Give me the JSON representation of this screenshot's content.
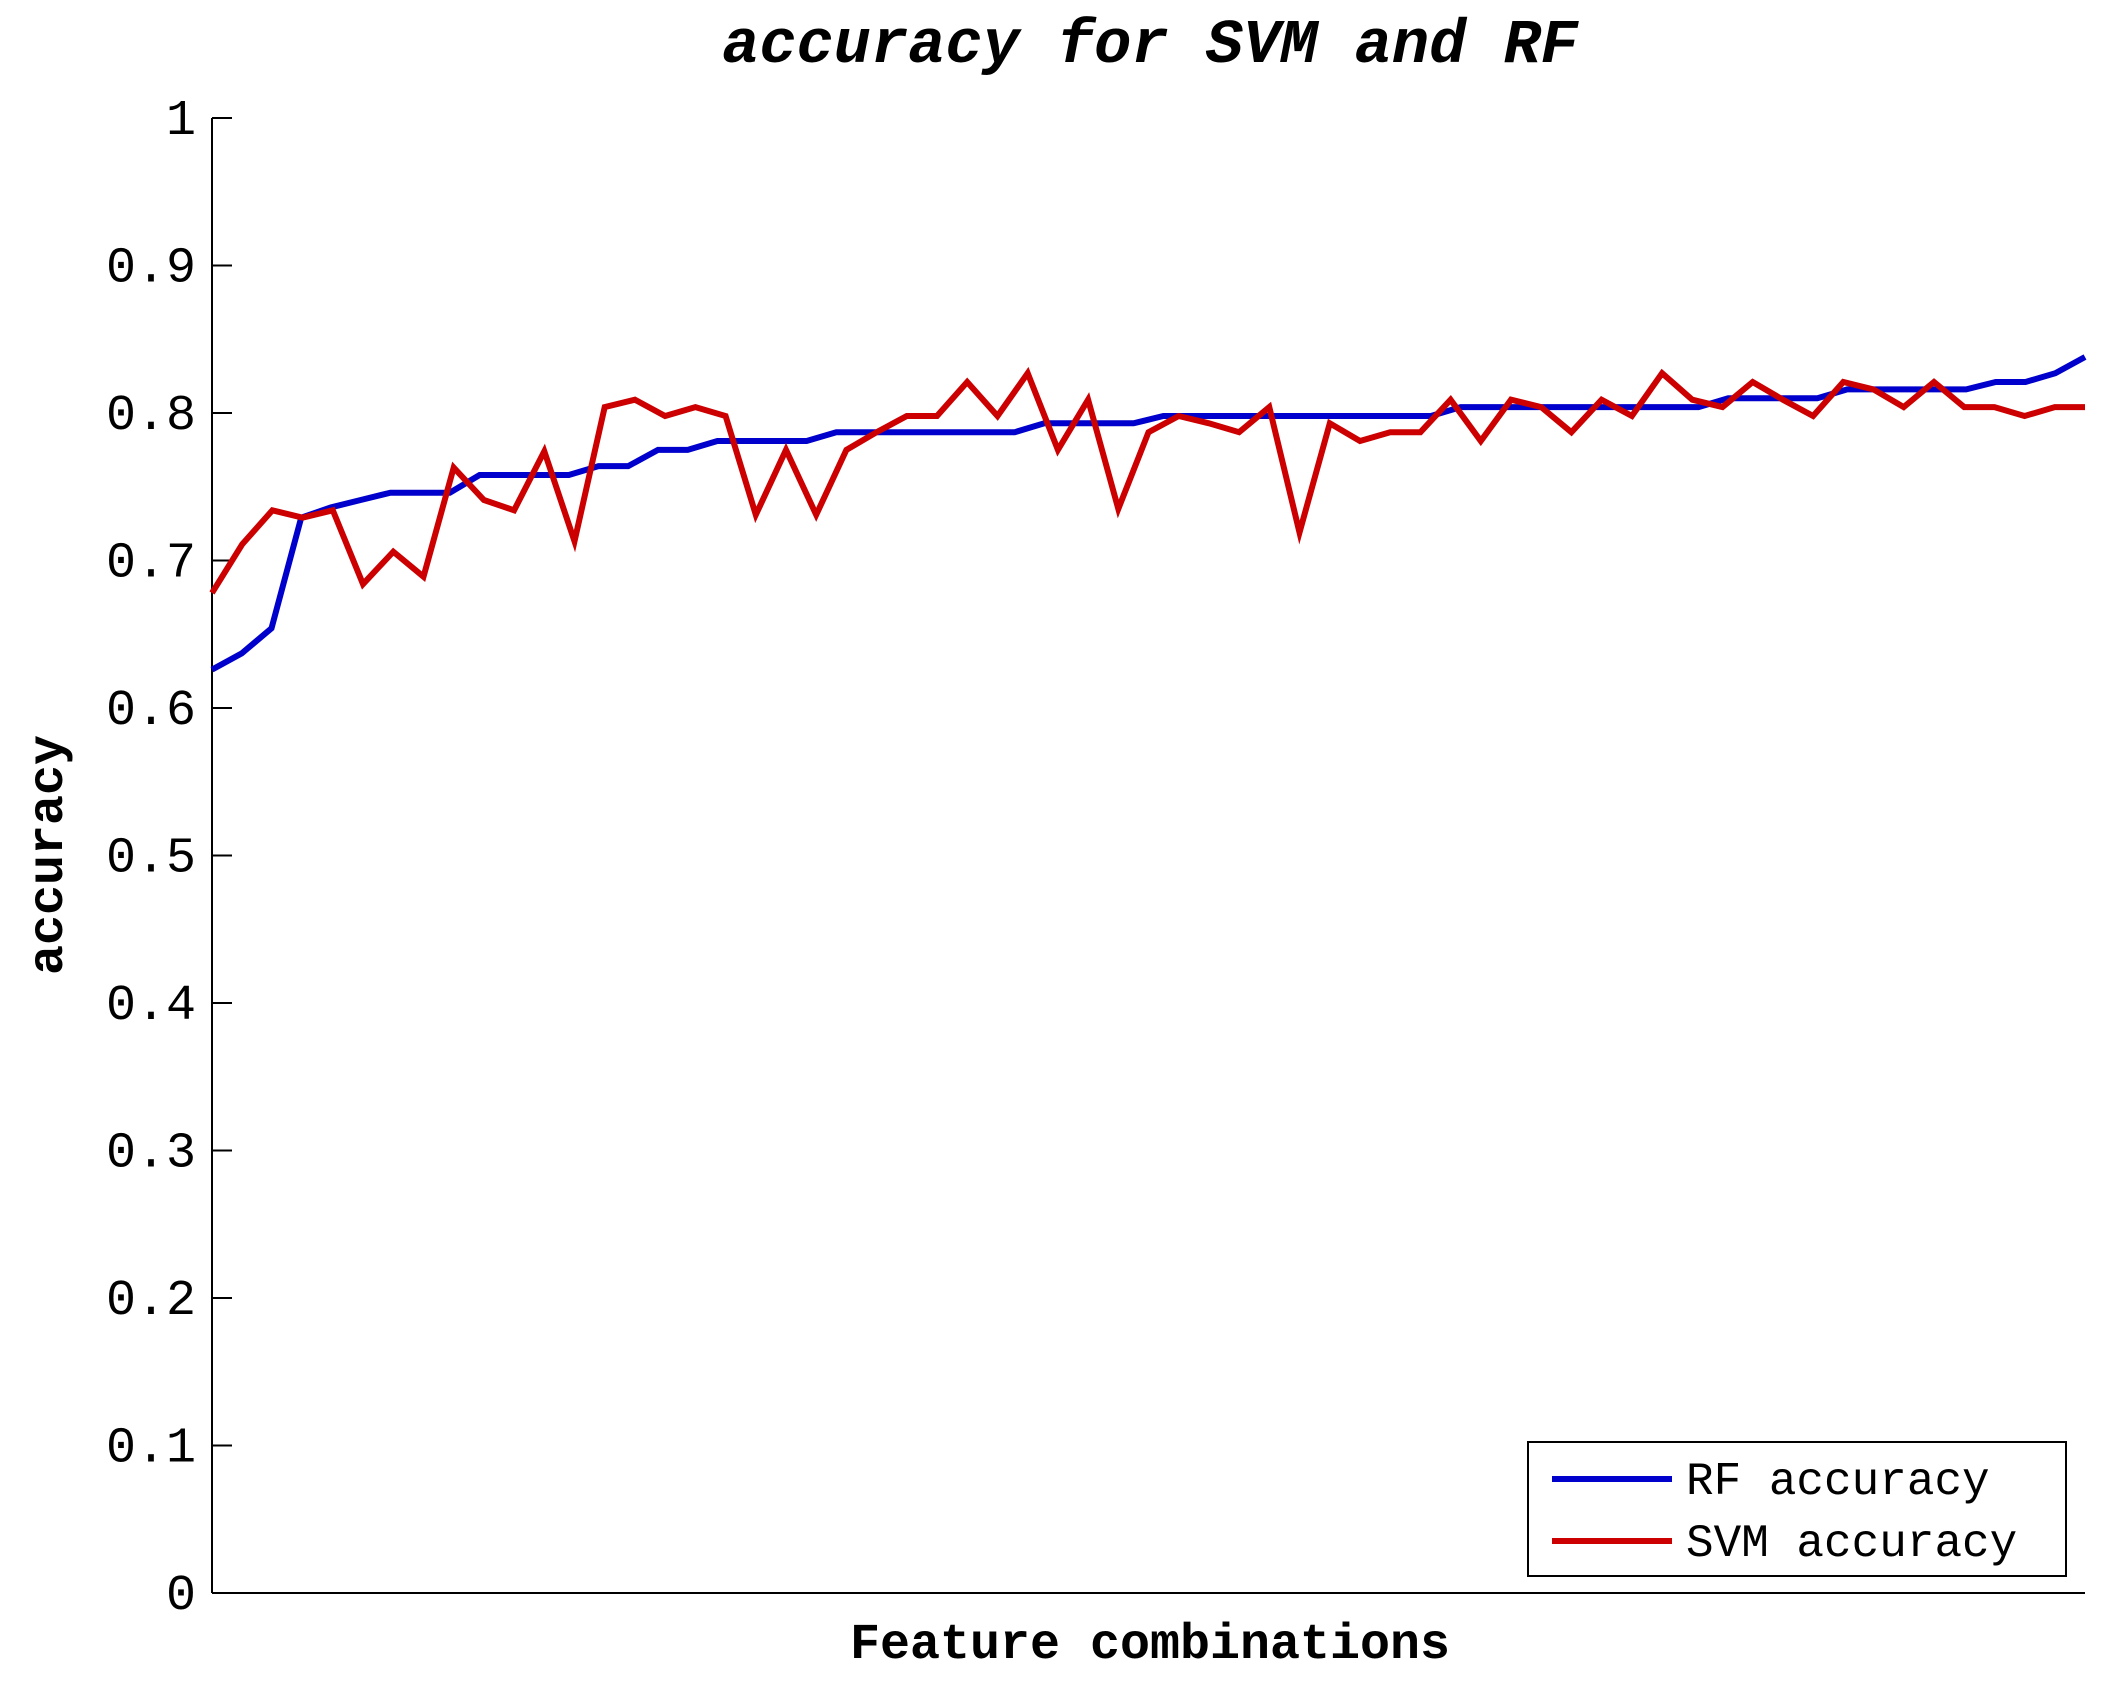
{
  "chart_data": {
    "type": "line",
    "title": "accuracy for SVM and RF",
    "xlabel": "Feature combinations",
    "ylabel": "accuracy",
    "ylim": [
      0,
      1
    ],
    "yticks": [
      "0",
      "0.1",
      "0.2",
      "0.3",
      "0.4",
      "0.5",
      "0.6",
      "0.7",
      "0.8",
      "0.9",
      "1"
    ],
    "grid": false,
    "legend_position": "bottom-right",
    "series": [
      {
        "name": "RF accuracy",
        "color": "#0000cc",
        "values": [
          0.626,
          0.637,
          0.654,
          0.729,
          0.736,
          0.741,
          0.746,
          0.746,
          0.746,
          0.758,
          0.758,
          0.758,
          0.758,
          0.764,
          0.764,
          0.775,
          0.775,
          0.781,
          0.781,
          0.781,
          0.781,
          0.787,
          0.787,
          0.787,
          0.787,
          0.787,
          0.787,
          0.787,
          0.793,
          0.793,
          0.793,
          0.793,
          0.798,
          0.798,
          0.798,
          0.798,
          0.798,
          0.798,
          0.798,
          0.798,
          0.798,
          0.798,
          0.804,
          0.804,
          0.804,
          0.804,
          0.804,
          0.804,
          0.804,
          0.804,
          0.804,
          0.81,
          0.81,
          0.81,
          0.81,
          0.816,
          0.816,
          0.816,
          0.816,
          0.816,
          0.821,
          0.821,
          0.827,
          0.838
        ]
      },
      {
        "name": "SVM accuracy",
        "color": "#cc0000",
        "values": [
          0.678,
          0.711,
          0.734,
          0.729,
          0.734,
          0.684,
          0.706,
          0.689,
          0.763,
          0.741,
          0.734,
          0.774,
          0.713,
          0.804,
          0.809,
          0.798,
          0.804,
          0.798,
          0.731,
          0.775,
          0.731,
          0.775,
          0.787,
          0.798,
          0.798,
          0.821,
          0.798,
          0.827,
          0.775,
          0.809,
          0.735,
          0.787,
          0.798,
          0.793,
          0.787,
          0.804,
          0.719,
          0.793,
          0.781,
          0.787,
          0.787,
          0.809,
          0.781,
          0.809,
          0.804,
          0.787,
          0.809,
          0.798,
          0.827,
          0.809,
          0.804,
          0.821,
          0.809,
          0.798,
          0.821,
          0.816,
          0.804,
          0.821,
          0.804,
          0.804,
          0.798,
          0.804,
          0.804
        ]
      }
    ]
  }
}
